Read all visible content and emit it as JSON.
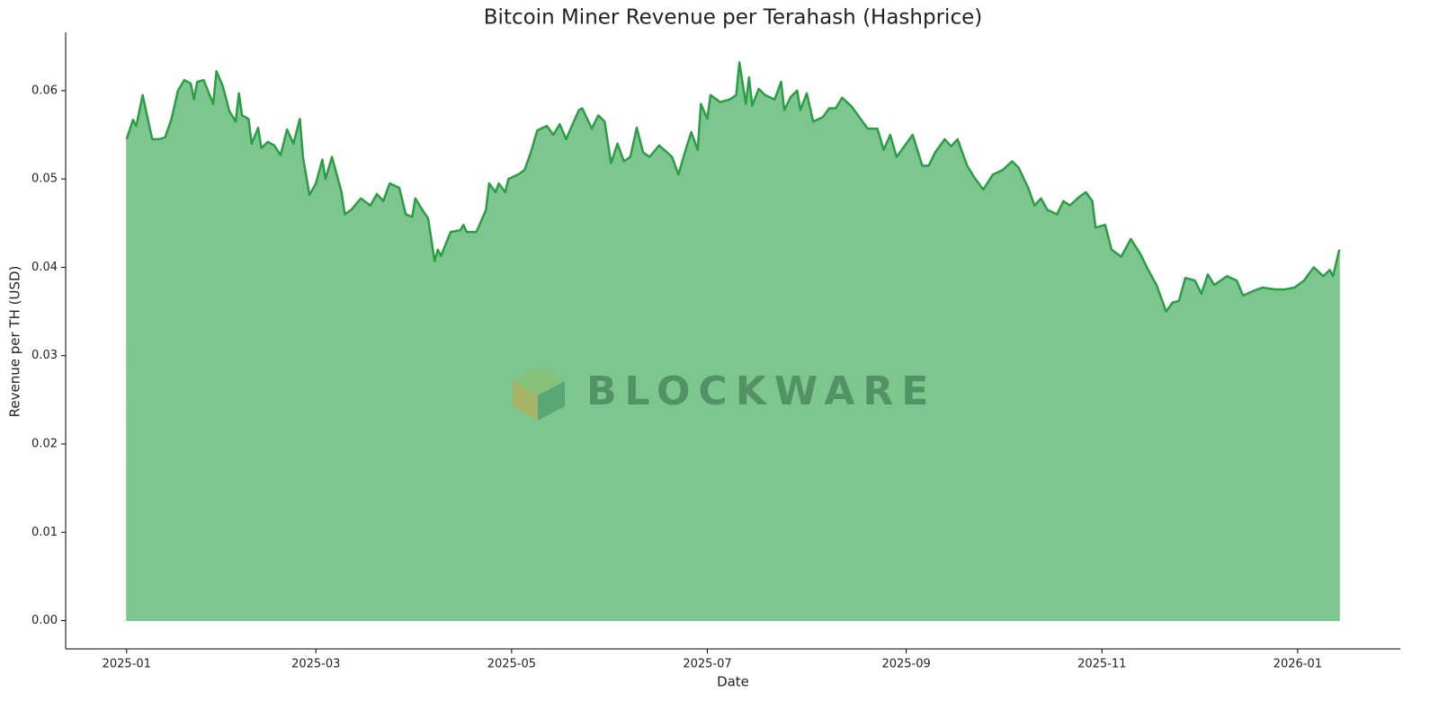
{
  "chart_data": {
    "type": "area",
    "title": "Bitcoin Miner Revenue per Terahash (Hashprice)",
    "x_label": "Date",
    "y_label": "Revenue per TH (USD)",
    "watermark": "BLOCKWARE",
    "color": "#2a9d45",
    "fill_color": "#7dc68f",
    "x": [
      0,
      2,
      3,
      5,
      6,
      8,
      10,
      12,
      14,
      16,
      18,
      20,
      21,
      22,
      24,
      27,
      28,
      30,
      32,
      34,
      35,
      36,
      38,
      39,
      41,
      42,
      44,
      46,
      48,
      50,
      52,
      54,
      55,
      57,
      59,
      61,
      62,
      64,
      67,
      68,
      70,
      73,
      76,
      78,
      80,
      82,
      85,
      87,
      89,
      90,
      92,
      94,
      96,
      97,
      98,
      101,
      104,
      105,
      106,
      109,
      110,
      112,
      113,
      115,
      116,
      118,
      119,
      122,
      124,
      126,
      128,
      131,
      133,
      135,
      137,
      139,
      141,
      142,
      145,
      147,
      149,
      151,
      153,
      155,
      157,
      159,
      161,
      163,
      166,
      170,
      172,
      174,
      176,
      178,
      179,
      181,
      182,
      185,
      188,
      190,
      191,
      193,
      194,
      195,
      197,
      199,
      202,
      204,
      205,
      207,
      209,
      210,
      212,
      214,
      217,
      219,
      221,
      223,
      226,
      229,
      231,
      234,
      236,
      238,
      240,
      243,
      245,
      248,
      250,
      252,
      255,
      257,
      259,
      262,
      264,
      267,
      270,
      273,
      276,
      278,
      281,
      283,
      285,
      287,
      290,
      292,
      294,
      297,
      299,
      301,
      302,
      305,
      307,
      310,
      313,
      316,
      318,
      321,
      324,
      326,
      328,
      330,
      333,
      335,
      337,
      339,
      343,
      346,
      348,
      351,
      354,
      358,
      361,
      364,
      367,
      370,
      373,
      375,
      376,
      378
    ],
    "values": [
      0.0545,
      0.0567,
      0.056,
      0.0595,
      0.0578,
      0.0545,
      0.0545,
      0.0547,
      0.0568,
      0.06,
      0.0612,
      0.0608,
      0.059,
      0.061,
      0.0612,
      0.0585,
      0.0622,
      0.0605,
      0.0577,
      0.0565,
      0.0597,
      0.0572,
      0.0568,
      0.054,
      0.0558,
      0.0535,
      0.0542,
      0.0538,
      0.0527,
      0.0556,
      0.054,
      0.0568,
      0.0524,
      0.0482,
      0.0495,
      0.0522,
      0.05,
      0.0525,
      0.0485,
      0.046,
      0.0465,
      0.0478,
      0.047,
      0.0483,
      0.0475,
      0.0495,
      0.049,
      0.046,
      0.0457,
      0.0478,
      0.0466,
      0.0455,
      0.0407,
      0.042,
      0.0413,
      0.044,
      0.0442,
      0.0448,
      0.044,
      0.044,
      0.0448,
      0.0465,
      0.0495,
      0.0485,
      0.0495,
      0.0485,
      0.05,
      0.0505,
      0.051,
      0.053,
      0.0555,
      0.056,
      0.055,
      0.0562,
      0.0545,
      0.0562,
      0.0578,
      0.058,
      0.0557,
      0.0572,
      0.0565,
      0.0518,
      0.054,
      0.052,
      0.0525,
      0.0558,
      0.053,
      0.0525,
      0.0538,
      0.0525,
      0.0505,
      0.053,
      0.0553,
      0.0533,
      0.0585,
      0.0568,
      0.0595,
      0.0587,
      0.059,
      0.0595,
      0.0632,
      0.0585,
      0.0615,
      0.0583,
      0.0602,
      0.0595,
      0.059,
      0.061,
      0.0578,
      0.0593,
      0.06,
      0.0578,
      0.0597,
      0.0565,
      0.057,
      0.058,
      0.058,
      0.0592,
      0.0582,
      0.0567,
      0.0557,
      0.0557,
      0.0533,
      0.055,
      0.0525,
      0.054,
      0.055,
      0.0515,
      0.0515,
      0.053,
      0.0545,
      0.0537,
      0.0545,
      0.0515,
      0.0503,
      0.0488,
      0.0505,
      0.051,
      0.052,
      0.0513,
      0.049,
      0.047,
      0.0478,
      0.0465,
      0.046,
      0.0475,
      0.047,
      0.048,
      0.0485,
      0.0475,
      0.0445,
      0.0448,
      0.042,
      0.0412,
      0.0432,
      0.0415,
      0.04,
      0.038,
      0.035,
      0.036,
      0.0362,
      0.0388,
      0.0385,
      0.037,
      0.0392,
      0.038,
      0.039,
      0.0385,
      0.0368,
      0.0373,
      0.0377,
      0.0375,
      0.0375,
      0.0377,
      0.0385,
      0.04,
      0.039,
      0.0397,
      0.039,
      0.042
    ],
    "xlim": [
      -19,
      397
    ],
    "xticks": [
      {
        "value": 0,
        "label": "2025-01"
      },
      {
        "value": 59,
        "label": "2025-03"
      },
      {
        "value": 120,
        "label": "2025-05"
      },
      {
        "value": 181,
        "label": "2025-07"
      },
      {
        "value": 243,
        "label": "2025-09"
      },
      {
        "value": 304,
        "label": "2025-11"
      },
      {
        "value": 365,
        "label": "2026-01"
      }
    ],
    "ylim": [
      -0.0032,
      0.0666
    ],
    "yticks": [
      {
        "value": 0,
        "label": "0.00"
      },
      {
        "value": 0.01,
        "label": "0.01"
      },
      {
        "value": 0.02,
        "label": "0.02"
      },
      {
        "value": 0.03,
        "label": "0.03"
      },
      {
        "value": 0.04,
        "label": "0.04"
      },
      {
        "value": 0.05,
        "label": "0.05"
      },
      {
        "value": 0.06,
        "label": "0.06"
      }
    ],
    "grid": false
  }
}
